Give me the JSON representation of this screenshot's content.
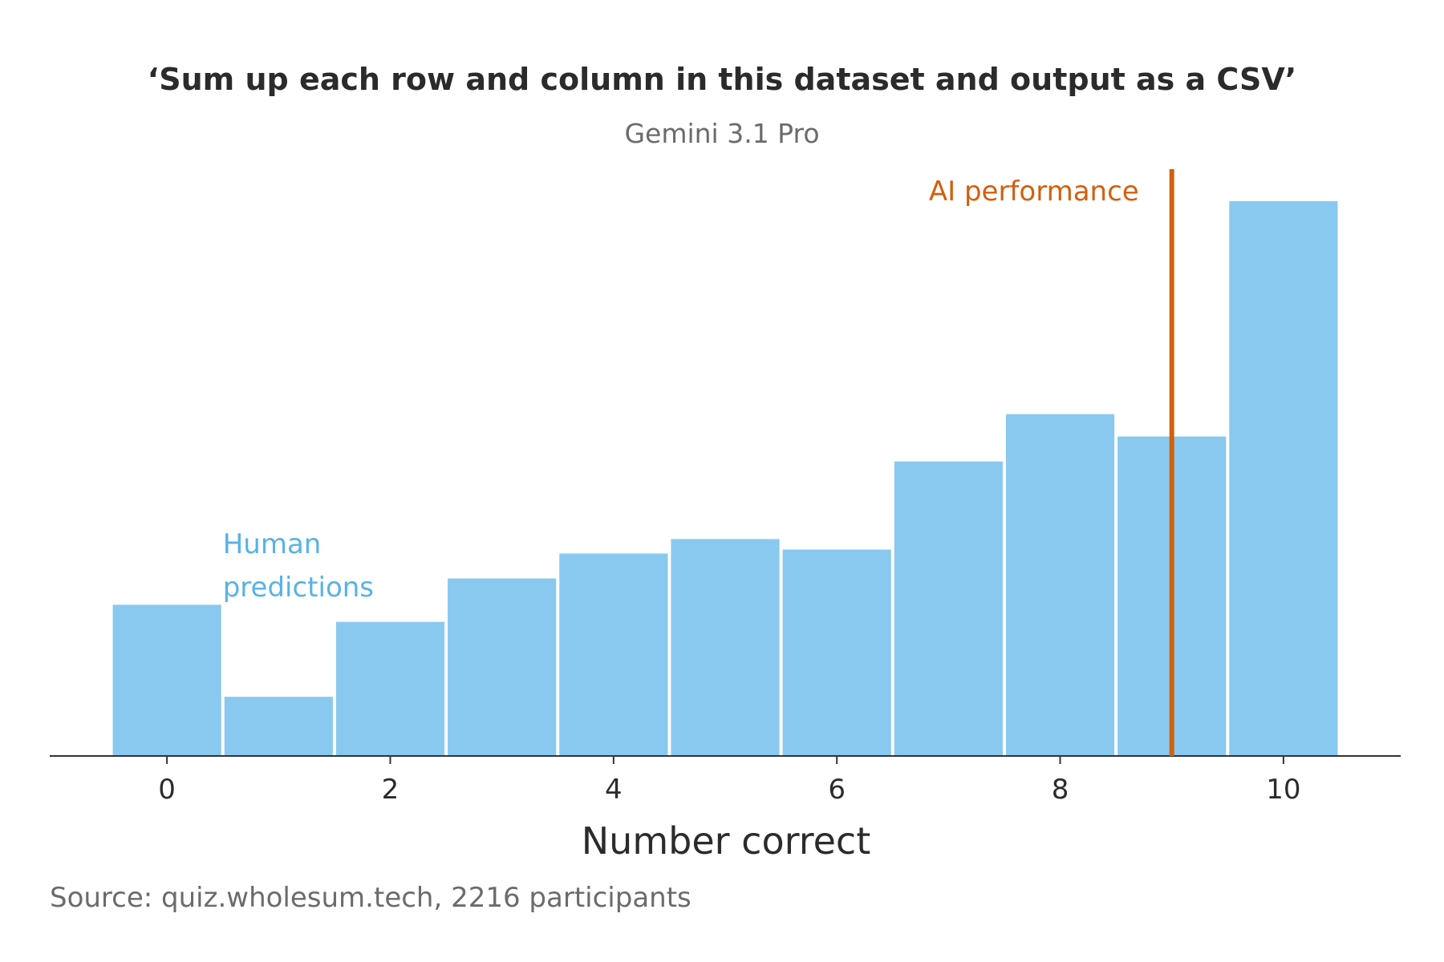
{
  "chart_data": {
    "type": "bar",
    "title": "‘Sum up each row and column in this dataset and output as a CSV’",
    "subtitle": "Gemini 3.1 Pro",
    "xlabel": "Number correct",
    "ylabel": "",
    "categories": [
      "0",
      "1",
      "2",
      "3",
      "4",
      "5",
      "6",
      "7",
      "8",
      "9",
      "10"
    ],
    "x_ticks": [
      "0",
      "2",
      "4",
      "6",
      "8",
      "10"
    ],
    "series": [
      {
        "name": "Human predictions",
        "values": [
          11.5,
          4.5,
          10.2,
          13.5,
          15.4,
          16.5,
          15.7,
          22.4,
          26.0,
          24.3,
          42.2
        ]
      }
    ],
    "ylim": [
      0,
      45
    ],
    "xlim": [
      -1.05,
      11.05
    ],
    "reference_line": {
      "name": "AI performance",
      "x": 9.0
    },
    "grid": false,
    "source": "Source: quiz.wholesum.tech, 2216 participants",
    "colors": {
      "bars": "#89c9ef",
      "ai_line": "#d2600f",
      "human_label": "#59b2e6",
      "axis": "#333333"
    }
  }
}
